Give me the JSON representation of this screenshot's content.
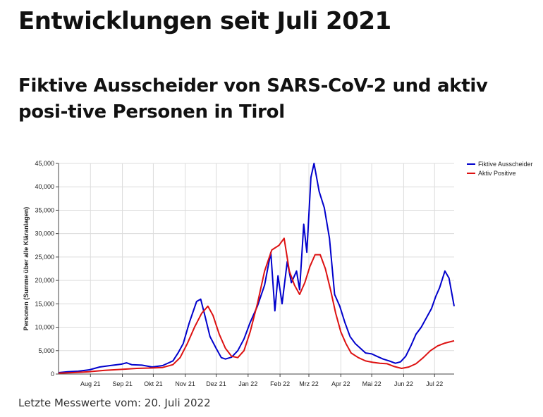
{
  "page": {
    "heading": "Entwicklungen seit Juli 2021",
    "chart_title": "Fiktive Ausscheider von SARS-CoV-2 und aktiv posi-tive Personen in Tirol",
    "footer": "Letzte Messwerte vom: 20. Juli 2022"
  },
  "chart_data": {
    "type": "line",
    "ylabel": "Personen (Summe über alle Kläranlagen)",
    "xlabel": "",
    "ylim": [
      0,
      45000
    ],
    "yticks": [
      0,
      5000,
      10000,
      15000,
      20000,
      25000,
      30000,
      35000,
      40000,
      45000
    ],
    "ytick_labels": [
      "0",
      "5,000",
      "10,000",
      "15,000",
      "20,000",
      "25,000",
      "30,000",
      "35,000",
      "40,000",
      "45,000"
    ],
    "xlim": [
      "2021-07-01",
      "2022-07-20"
    ],
    "xticks": [
      {
        "date": "2021-08-01",
        "label": "Aug 21"
      },
      {
        "date": "2021-09-01",
        "label": "Sep 21"
      },
      {
        "date": "2021-10-01",
        "label": "Okt 21"
      },
      {
        "date": "2021-11-01",
        "label": "Nov 21"
      },
      {
        "date": "2021-12-01",
        "label": "Dez 21"
      },
      {
        "date": "2022-01-01",
        "label": "Jan 22"
      },
      {
        "date": "2022-02-01",
        "label": "Feb 22"
      },
      {
        "date": "2022-03-01",
        "label": "Mrz 22"
      },
      {
        "date": "2022-04-01",
        "label": "Apr 22"
      },
      {
        "date": "2022-05-01",
        "label": "Mai 22"
      },
      {
        "date": "2022-06-01",
        "label": "Jun 22"
      },
      {
        "date": "2022-07-01",
        "label": "Jul 22"
      }
    ],
    "grid": true,
    "legend_position": "top-right",
    "series": [
      {
        "name": "Fiktive Ausscheider",
        "color": "#0000cc",
        "points": [
          [
            "2021-07-01",
            300
          ],
          [
            "2021-07-10",
            500
          ],
          [
            "2021-07-20",
            600
          ],
          [
            "2021-07-31",
            900
          ],
          [
            "2021-08-10",
            1500
          ],
          [
            "2021-08-20",
            1800
          ],
          [
            "2021-08-31",
            2100
          ],
          [
            "2021-09-05",
            2400
          ],
          [
            "2021-09-10",
            2000
          ],
          [
            "2021-09-20",
            1900
          ],
          [
            "2021-09-30",
            1500
          ],
          [
            "2021-10-10",
            1800
          ],
          [
            "2021-10-20",
            2800
          ],
          [
            "2021-10-25",
            4500
          ],
          [
            "2021-10-30",
            6500
          ],
          [
            "2021-11-05",
            11000
          ],
          [
            "2021-11-12",
            15500
          ],
          [
            "2021-11-16",
            16000
          ],
          [
            "2021-11-20",
            12500
          ],
          [
            "2021-11-25",
            8000
          ],
          [
            "2021-12-01",
            5500
          ],
          [
            "2021-12-06",
            3500
          ],
          [
            "2021-12-10",
            3200
          ],
          [
            "2021-12-16",
            3600
          ],
          [
            "2021-12-22",
            5000
          ],
          [
            "2021-12-28",
            7500
          ],
          [
            "2022-01-03",
            11000
          ],
          [
            "2022-01-10",
            14500
          ],
          [
            "2022-01-17",
            19000
          ],
          [
            "2022-01-23",
            26000
          ],
          [
            "2022-01-27",
            13500
          ],
          [
            "2022-01-30",
            21000
          ],
          [
            "2022-02-03",
            15000
          ],
          [
            "2022-02-08",
            24000
          ],
          [
            "2022-02-12",
            19500
          ],
          [
            "2022-02-17",
            22000
          ],
          [
            "2022-02-20",
            18000
          ],
          [
            "2022-02-24",
            32000
          ],
          [
            "2022-02-27",
            26000
          ],
          [
            "2022-03-03",
            42000
          ],
          [
            "2022-03-06",
            45000
          ],
          [
            "2022-03-11",
            39000
          ],
          [
            "2022-03-16",
            35500
          ],
          [
            "2022-03-21",
            29000
          ],
          [
            "2022-03-26",
            17000
          ],
          [
            "2022-03-31",
            14500
          ],
          [
            "2022-04-05",
            11000
          ],
          [
            "2022-04-10",
            8000
          ],
          [
            "2022-04-15",
            6500
          ],
          [
            "2022-04-20",
            5500
          ],
          [
            "2022-04-25",
            4500
          ],
          [
            "2022-05-01",
            4300
          ],
          [
            "2022-05-06",
            3800
          ],
          [
            "2022-05-12",
            3200
          ],
          [
            "2022-05-18",
            2800
          ],
          [
            "2022-05-24",
            2300
          ],
          [
            "2022-05-29",
            2600
          ],
          [
            "2022-06-03",
            3800
          ],
          [
            "2022-06-08",
            6000
          ],
          [
            "2022-06-13",
            8500
          ],
          [
            "2022-06-18",
            10000
          ],
          [
            "2022-06-23",
            12000
          ],
          [
            "2022-06-28",
            14000
          ],
          [
            "2022-07-02",
            16500
          ],
          [
            "2022-07-06",
            18500
          ],
          [
            "2022-07-11",
            22000
          ],
          [
            "2022-07-15",
            20500
          ],
          [
            "2022-07-20",
            14500
          ]
        ]
      },
      {
        "name": "Aktiv Positive",
        "color": "#dd1111",
        "points": [
          [
            "2021-07-01",
            200
          ],
          [
            "2021-07-15",
            300
          ],
          [
            "2021-07-31",
            500
          ],
          [
            "2021-08-15",
            800
          ],
          [
            "2021-08-31",
            1000
          ],
          [
            "2021-09-15",
            1200
          ],
          [
            "2021-09-30",
            1300
          ],
          [
            "2021-10-10",
            1400
          ],
          [
            "2021-10-20",
            2000
          ],
          [
            "2021-10-27",
            3500
          ],
          [
            "2021-11-03",
            6500
          ],
          [
            "2021-11-10",
            10000
          ],
          [
            "2021-11-17",
            13000
          ],
          [
            "2021-11-23",
            14500
          ],
          [
            "2021-11-28",
            12500
          ],
          [
            "2021-12-04",
            8500
          ],
          [
            "2021-12-10",
            5500
          ],
          [
            "2021-12-16",
            3800
          ],
          [
            "2021-12-22",
            3500
          ],
          [
            "2021-12-28",
            5000
          ],
          [
            "2022-01-03",
            9000
          ],
          [
            "2022-01-10",
            15000
          ],
          [
            "2022-01-17",
            22000
          ],
          [
            "2022-01-24",
            26500
          ],
          [
            "2022-01-31",
            27500
          ],
          [
            "2022-02-05",
            29000
          ],
          [
            "2022-02-10",
            22000
          ],
          [
            "2022-02-15",
            19000
          ],
          [
            "2022-02-20",
            17000
          ],
          [
            "2022-02-25",
            19500
          ],
          [
            "2022-03-02",
            23000
          ],
          [
            "2022-03-07",
            25500
          ],
          [
            "2022-03-12",
            25500
          ],
          [
            "2022-03-17",
            22500
          ],
          [
            "2022-03-22",
            18000
          ],
          [
            "2022-03-27",
            13000
          ],
          [
            "2022-04-01",
            9000
          ],
          [
            "2022-04-06",
            6500
          ],
          [
            "2022-04-11",
            4500
          ],
          [
            "2022-04-18",
            3500
          ],
          [
            "2022-04-25",
            2800
          ],
          [
            "2022-05-02",
            2500
          ],
          [
            "2022-05-09",
            2300
          ],
          [
            "2022-05-16",
            2200
          ],
          [
            "2022-05-23",
            1600
          ],
          [
            "2022-05-30",
            1200
          ],
          [
            "2022-06-06",
            1500
          ],
          [
            "2022-06-13",
            2200
          ],
          [
            "2022-06-20",
            3500
          ],
          [
            "2022-06-27",
            5000
          ],
          [
            "2022-07-04",
            6000
          ],
          [
            "2022-07-11",
            6600
          ],
          [
            "2022-07-20",
            7100
          ]
        ]
      }
    ]
  }
}
